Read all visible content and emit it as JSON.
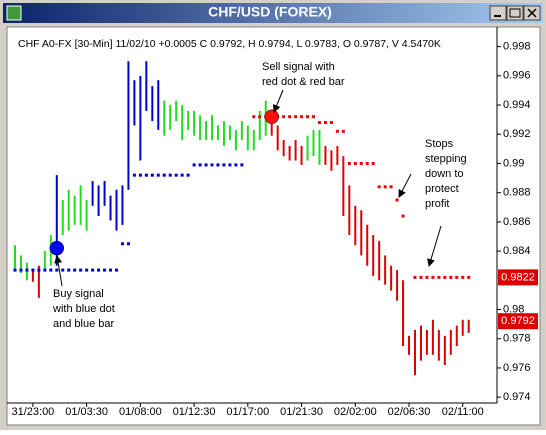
{
  "window_title": "CHF/USD (FOREX)",
  "chart_data": {
    "type": "hl-bar",
    "header": "CHF A0-FX [30-Min] 11/02/10 +0.0005 C 0.9792, H 0.9794, L 0.9783, O 0.9787, V 4.5470K",
    "categories": [
      null,
      null,
      null,
      "31/23:00",
      null,
      null,
      null,
      null,
      null,
      null,
      null,
      null,
      "01/03:30",
      null,
      null,
      null,
      null,
      null,
      null,
      null,
      null,
      "01/08:00",
      null,
      null,
      null,
      null,
      null,
      null,
      null,
      null,
      "01/12:30",
      null,
      null,
      null,
      null,
      null,
      null,
      null,
      null,
      "01/17:00",
      null,
      null,
      null,
      null,
      null,
      null,
      null,
      null,
      "01/21:30",
      null,
      null,
      null,
      null,
      null,
      null,
      null,
      null,
      "02/02:00",
      null,
      null,
      null,
      null,
      null,
      null,
      null,
      null,
      "02/06:30",
      null,
      null,
      null,
      null,
      null,
      null,
      null,
      null,
      "02/11:00",
      null
    ],
    "high": [
      0.9844,
      0.9837,
      0.9832,
      0.9827,
      0.983,
      0.984,
      0.9851,
      0.9892,
      0.9875,
      0.9882,
      0.9878,
      0.9885,
      0.9875,
      0.9888,
      0.9885,
      0.9888,
      0.9878,
      0.9882,
      0.9885,
      0.997,
      0.9957,
      0.996,
      0.997,
      0.9953,
      0.9957,
      0.9943,
      0.994,
      0.9943,
      0.994,
      0.9936,
      0.9936,
      0.9933,
      0.9929,
      0.9933,
      0.9926,
      0.9929,
      0.9926,
      0.9923,
      0.9929,
      0.9926,
      0.9923,
      0.9936,
      0.9943,
      0.9933,
      0.9926,
      0.9916,
      0.9912,
      0.9916,
      0.9912,
      0.9919,
      0.9923,
      0.9923,
      0.9912,
      0.9909,
      0.9912,
      0.9905,
      0.9885,
      0.9871,
      0.9868,
      0.9858,
      0.9851,
      0.9847,
      0.9837,
      0.983,
      0.9827,
      0.982,
      0.9782,
      0.9786,
      0.9789,
      0.9786,
      0.9793,
      0.9786,
      0.9782,
      0.9786,
      0.9789,
      0.9793,
      0.9793
    ],
    "low": [
      0.9828,
      0.9825,
      0.982,
      0.9819,
      0.9808,
      0.9828,
      0.983,
      0.983,
      0.9851,
      0.9854,
      0.9858,
      0.9858,
      0.9854,
      0.9871,
      0.9864,
      0.9871,
      0.9861,
      0.9854,
      0.9858,
      0.9882,
      0.9926,
      0.9902,
      0.9936,
      0.9929,
      0.9923,
      0.9919,
      0.9923,
      0.9929,
      0.9916,
      0.9923,
      0.9919,
      0.9916,
      0.9916,
      0.9916,
      0.9916,
      0.9912,
      0.9916,
      0.9909,
      0.9916,
      0.9909,
      0.9909,
      0.9916,
      0.9919,
      0.9919,
      0.9909,
      0.9905,
      0.9902,
      0.9902,
      0.9899,
      0.9902,
      0.9905,
      0.9899,
      0.9899,
      0.9895,
      0.9899,
      0.9864,
      0.9851,
      0.9844,
      0.9837,
      0.983,
      0.9823,
      0.982,
      0.9817,
      0.9813,
      0.9806,
      0.9775,
      0.9769,
      0.9755,
      0.9765,
      0.9769,
      0.9769,
      0.9765,
      0.9762,
      0.9769,
      0.9775,
      0.9782,
      0.9784
    ],
    "bar_colors": [
      "#22dd22",
      "#22dd22",
      "#22dd22",
      "#dd0000",
      "#dd0000",
      "#22dd22",
      "#22dd22",
      "#0000cc",
      "#22dd22",
      "#22dd22",
      "#22dd22",
      "#22dd22",
      "#22dd22",
      "#0000cc",
      "#0000cc",
      "#0000cc",
      "#0000cc",
      "#0000cc",
      "#0000cc",
      "#0000cc",
      "#0000cc",
      "#0000cc",
      "#0000cc",
      "#0000cc",
      "#0000cc",
      "#22dd22",
      "#22dd22",
      "#22dd22",
      "#22dd22",
      "#22dd22",
      "#22dd22",
      "#22dd22",
      "#22dd22",
      "#22dd22",
      "#22dd22",
      "#22dd22",
      "#22dd22",
      "#22dd22",
      "#22dd22",
      "#22dd22",
      "#22dd22",
      "#22dd22",
      "#22dd22",
      "#dd0000",
      "#dd0000",
      "#dd0000",
      "#dd0000",
      "#dd0000",
      "#dd0000",
      "#22dd22",
      "#22dd22",
      "#22dd22",
      "#dd0000",
      "#dd0000",
      "#dd0000",
      "#dd0000",
      "#dd0000",
      "#dd0000",
      "#dd0000",
      "#dd0000",
      "#dd0000",
      "#dd0000",
      "#dd0000",
      "#dd0000",
      "#dd0000",
      "#dd0000",
      "#dd0000",
      "#dd0000",
      "#dd0000",
      "#dd0000",
      "#dd0000",
      "#dd0000",
      "#dd0000",
      "#dd0000",
      "#dd0000",
      "#dd0000",
      "#dd0000"
    ],
    "stops": [
      {
        "color": "#0000cc",
        "values": [
          0.9827,
          0.9827,
          0.9827,
          0.9827,
          0.9827,
          0.9827,
          0.9827,
          0.9827,
          0.9827,
          0.9827,
          0.9827,
          0.9827,
          0.9827,
          0.9827,
          0.9827,
          0.9827,
          0.9827,
          0.9827,
          0.9845,
          0.9845,
          0.9892,
          0.9892,
          0.9892,
          0.9892,
          0.9892,
          0.9892,
          0.9892,
          0.9892,
          0.9892,
          0.9892,
          0.9899,
          0.9899,
          0.9899,
          0.9899,
          0.9899,
          0.9899,
          0.9899,
          0.9899,
          0.9899,
          null,
          null,
          null,
          null,
          null,
          null,
          null,
          null,
          null,
          null,
          null,
          null,
          null,
          null,
          null,
          null,
          null,
          null,
          null,
          null,
          null,
          null,
          null,
          null,
          null,
          null,
          null,
          null,
          null,
          null,
          null,
          null,
          null,
          null,
          null,
          null,
          null,
          null
        ]
      },
      {
        "color": "#ee0000",
        "values": [
          null,
          null,
          null,
          null,
          null,
          null,
          null,
          null,
          null,
          null,
          null,
          null,
          null,
          null,
          null,
          null,
          null,
          null,
          null,
          null,
          null,
          null,
          null,
          null,
          null,
          null,
          null,
          null,
          null,
          null,
          null,
          null,
          null,
          null,
          null,
          null,
          null,
          null,
          null,
          null,
          0.9932,
          0.9932,
          0.9932,
          0.9932,
          0.9932,
          0.9932,
          0.9932,
          0.9932,
          0.9932,
          0.9932,
          0.9932,
          0.9928,
          0.9928,
          0.9928,
          0.9922,
          0.9922,
          0.99,
          0.99,
          0.99,
          0.99,
          0.99,
          0.9884,
          0.9884,
          0.9884,
          0.9875,
          0.9864,
          null,
          0.9822,
          0.9822,
          0.9822,
          0.9822,
          0.9822,
          0.9822,
          0.9822,
          0.9822,
          0.9822,
          0.9822
        ]
      }
    ],
    "signals": [
      {
        "x": 7,
        "y": 0.9842,
        "color": "#0000ff"
      },
      {
        "x": 43,
        "y": 0.9932,
        "color": "#ff1111"
      }
    ],
    "price_labels": [
      0.9822,
      0.9792
    ],
    "price_label_color": "#dd0000",
    "ylim": [
      0.9736,
      0.999
    ],
    "yticks": [
      0.998,
      0.996,
      0.994,
      0.992,
      0.99,
      0.988,
      0.986,
      0.984,
      0.98,
      0.978,
      0.976,
      0.974
    ],
    "annotations": [
      {
        "lines": [
          "Buy signal",
          "with blue dot",
          "and blue bar"
        ]
      },
      {
        "lines": [
          "Sell signal with",
          "red dot & red bar"
        ]
      },
      {
        "lines": [
          "Stops",
          "stepping",
          "down to",
          "protect",
          "profit"
        ]
      }
    ]
  }
}
